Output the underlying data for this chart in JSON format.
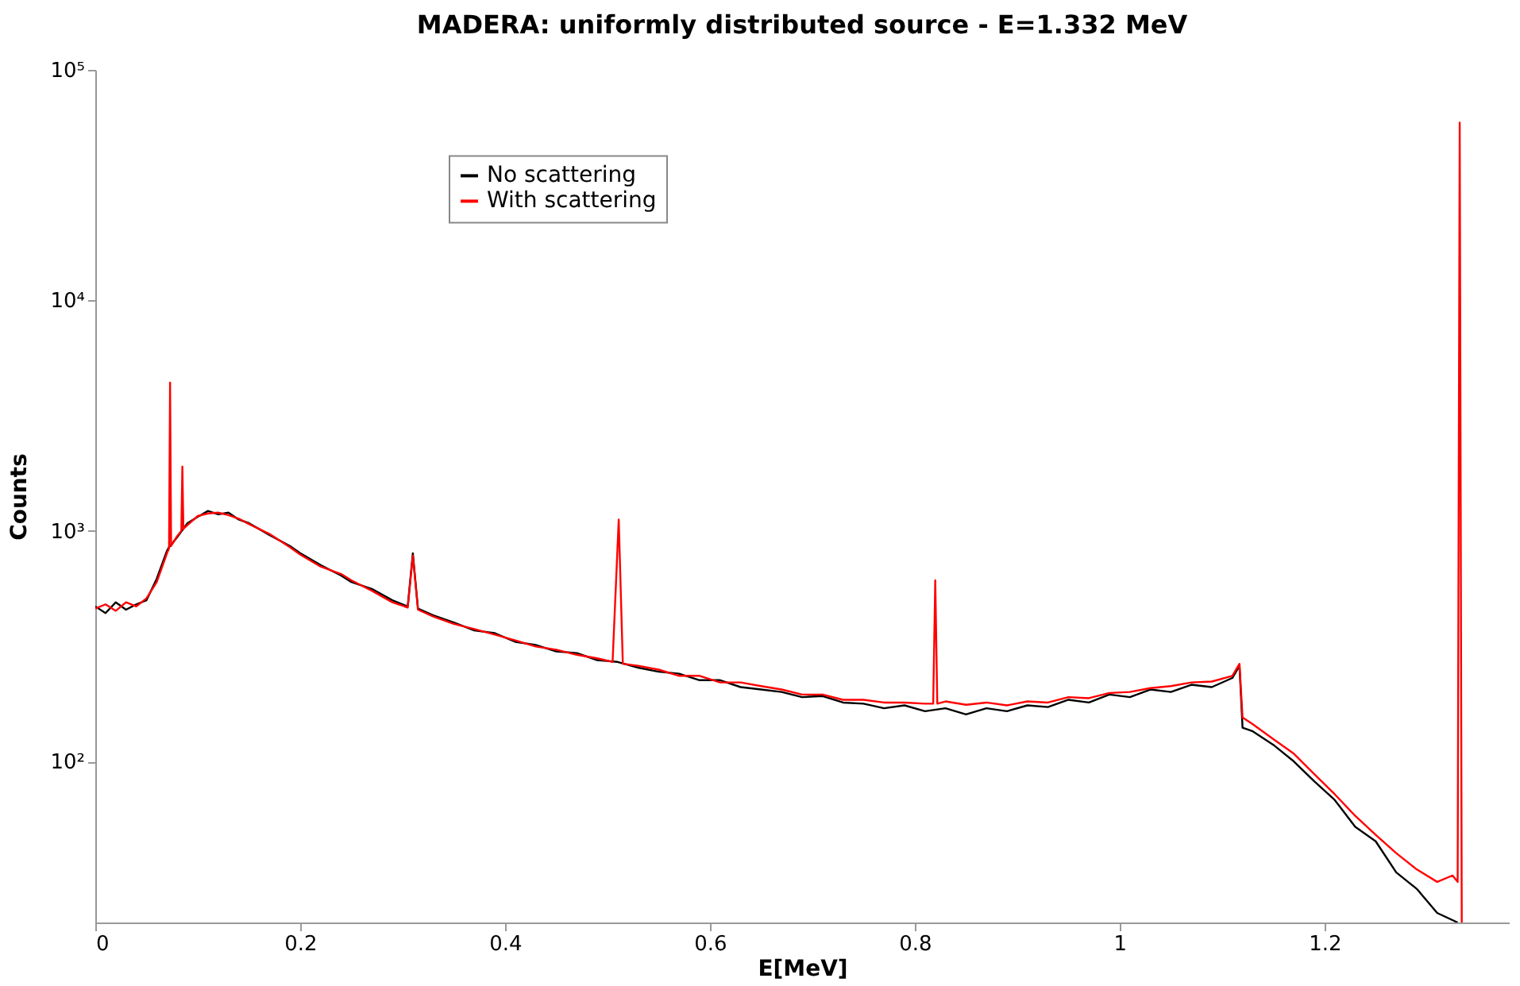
{
  "chart_data": {
    "type": "line",
    "title": "MADERA: uniformly distributed source - E=1.332 MeV",
    "xlabel": "E[MeV]",
    "ylabel": "Counts",
    "log": "y",
    "grid": false,
    "legend": "top left",
    "marker": "none",
    "line_style": "solid",
    "xlim": [
      0,
      1.38
    ],
    "xticks": [
      0,
      0.2,
      0.4,
      0.6,
      0.8,
      1,
      1.2
    ],
    "ylim": [
      20,
      100000
    ],
    "yticks": [
      {
        "value": 100,
        "label": "10²"
      },
      {
        "value": 1000,
        "label": "10³"
      },
      {
        "value": 10000,
        "label": "10⁴"
      },
      {
        "value": 100000,
        "label": "10⁵"
      }
    ],
    "series": [
      {
        "name": "No scattering",
        "color": "#000000",
        "x": [
          0,
          0.01,
          0.02,
          0.03,
          0.04,
          0.05,
          0.06,
          0.07,
          0.072,
          0.074,
          0.08,
          0.09,
          0.1,
          0.11,
          0.12,
          0.13,
          0.14,
          0.15,
          0.17,
          0.19,
          0.2,
          0.22,
          0.24,
          0.25,
          0.27,
          0.29,
          0.305,
          0.31,
          0.315,
          0.33,
          0.35,
          0.37,
          0.39,
          0.41,
          0.43,
          0.45,
          0.47,
          0.49,
          0.51,
          0.53,
          0.55,
          0.57,
          0.59,
          0.61,
          0.63,
          0.65,
          0.67,
          0.69,
          0.71,
          0.73,
          0.75,
          0.77,
          0.79,
          0.81,
          0.83,
          0.85,
          0.87,
          0.89,
          0.91,
          0.93,
          0.95,
          0.97,
          0.99,
          1.01,
          1.03,
          1.05,
          1.07,
          1.09,
          1.11,
          1.117,
          1.12,
          1.13,
          1.15,
          1.17,
          1.19,
          1.21,
          1.23,
          1.25,
          1.27,
          1.29,
          1.31,
          1.33
        ],
        "values": [
          470,
          440,
          490,
          455,
          480,
          500,
          620,
          820,
          850,
          870,
          940,
          1080,
          1150,
          1220,
          1180,
          1200,
          1120,
          1080,
          960,
          860,
          800,
          710,
          640,
          600,
          560,
          500,
          470,
          800,
          460,
          430,
          400,
          370,
          360,
          330,
          320,
          300,
          295,
          275,
          270,
          255,
          245,
          240,
          225,
          225,
          210,
          205,
          200,
          190,
          192,
          180,
          178,
          170,
          175,
          165,
          170,
          160,
          170,
          165,
          175,
          172,
          185,
          180,
          195,
          190,
          205,
          200,
          215,
          210,
          230,
          260,
          140,
          135,
          118,
          100,
          82,
          68,
          52,
          45,
          33,
          28,
          22,
          20
        ]
      },
      {
        "name": "With scattering",
        "color": "#ff0000",
        "x": [
          0,
          0.01,
          0.02,
          0.03,
          0.04,
          0.05,
          0.06,
          0.07,
          0.072,
          0.073,
          0.074,
          0.08,
          0.084,
          0.085,
          0.086,
          0.09,
          0.1,
          0.11,
          0.12,
          0.13,
          0.14,
          0.15,
          0.17,
          0.19,
          0.2,
          0.22,
          0.24,
          0.25,
          0.27,
          0.29,
          0.305,
          0.31,
          0.315,
          0.33,
          0.35,
          0.37,
          0.39,
          0.41,
          0.43,
          0.45,
          0.47,
          0.49,
          0.505,
          0.511,
          0.515,
          0.53,
          0.55,
          0.57,
          0.59,
          0.61,
          0.63,
          0.65,
          0.67,
          0.69,
          0.71,
          0.73,
          0.75,
          0.77,
          0.79,
          0.81,
          0.818,
          0.82,
          0.822,
          0.83,
          0.85,
          0.87,
          0.89,
          0.91,
          0.93,
          0.95,
          0.97,
          0.99,
          1.01,
          1.03,
          1.05,
          1.07,
          1.09,
          1.11,
          1.117,
          1.12,
          1.13,
          1.15,
          1.17,
          1.19,
          1.21,
          1.23,
          1.25,
          1.27,
          1.29,
          1.31,
          1.325,
          1.33,
          1.332,
          1.334
        ],
        "values": [
          460,
          480,
          450,
          490,
          470,
          510,
          600,
          800,
          840,
          4400,
          860,
          950,
          1000,
          1900,
          1020,
          1060,
          1160,
          1190,
          1200,
          1170,
          1130,
          1070,
          970,
          850,
          790,
          700,
          650,
          610,
          550,
          490,
          465,
          780,
          455,
          425,
          395,
          375,
          355,
          335,
          315,
          305,
          290,
          280,
          270,
          1120,
          265,
          260,
          250,
          235,
          235,
          220,
          220,
          212,
          205,
          195,
          195,
          185,
          185,
          180,
          180,
          178,
          178,
          610,
          178,
          182,
          176,
          180,
          175,
          182,
          180,
          190,
          188,
          198,
          200,
          208,
          212,
          220,
          222,
          235,
          265,
          155,
          145,
          125,
          108,
          88,
          72,
          58,
          48,
          40,
          34,
          30,
          32,
          30,
          59000,
          20
        ]
      }
    ]
  }
}
